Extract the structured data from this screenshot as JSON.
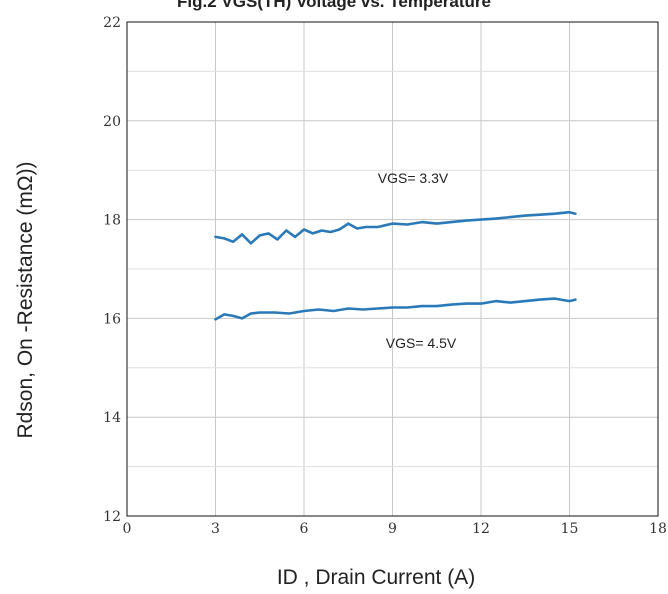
{
  "chart_data": {
    "type": "line",
    "title": "Fig.2 VGS(TH) Voltage vs. Temperature",
    "xlabel": "ID , Drain Current (A)",
    "ylabel": "Rdson, On -Resistance (mΩ))",
    "xlim": [
      0,
      18
    ],
    "ylim": [
      12,
      22
    ],
    "xticks": [
      0,
      3,
      6,
      9,
      12,
      15,
      18
    ],
    "yticks": [
      12,
      14,
      16,
      18,
      20,
      22
    ],
    "x_tick_labels": [
      "0",
      "3",
      "6",
      "9",
      "12",
      "15",
      "18"
    ],
    "y_tick_labels": [
      "12",
      "14",
      "16",
      "18",
      "20",
      "22"
    ],
    "grid": true,
    "annotations": [
      "VGS= 3.3V",
      "VGS= 4.5V"
    ],
    "line_color": "#2a7ab9",
    "series": [
      {
        "name": "VGS= 3.3V",
        "x": [
          3.0,
          3.3,
          3.6,
          3.9,
          4.2,
          4.5,
          4.8,
          5.1,
          5.4,
          5.7,
          6.0,
          6.3,
          6.6,
          6.9,
          7.2,
          7.5,
          7.8,
          8.1,
          8.5,
          9.0,
          9.5,
          10.0,
          10.5,
          11.0,
          11.5,
          12.0,
          12.5,
          13.0,
          13.5,
          14.0,
          14.5,
          15.0,
          15.2
        ],
        "y": [
          17.65,
          17.62,
          17.55,
          17.7,
          17.52,
          17.68,
          17.72,
          17.6,
          17.78,
          17.65,
          17.8,
          17.72,
          17.78,
          17.75,
          17.8,
          17.92,
          17.82,
          17.85,
          17.85,
          17.92,
          17.9,
          17.95,
          17.92,
          17.95,
          17.98,
          18.0,
          18.02,
          18.05,
          18.08,
          18.1,
          18.12,
          18.15,
          18.12
        ]
      },
      {
        "name": "VGS= 4.5V",
        "x": [
          3.0,
          3.3,
          3.6,
          3.9,
          4.2,
          4.5,
          5.0,
          5.5,
          6.0,
          6.5,
          7.0,
          7.5,
          8.0,
          8.5,
          9.0,
          9.5,
          10.0,
          10.5,
          11.0,
          11.5,
          12.0,
          12.5,
          13.0,
          13.5,
          14.0,
          14.5,
          15.0,
          15.2
        ],
        "y": [
          15.98,
          16.08,
          16.05,
          16.0,
          16.1,
          16.12,
          16.12,
          16.1,
          16.15,
          16.18,
          16.15,
          16.2,
          16.18,
          16.2,
          16.22,
          16.22,
          16.25,
          16.25,
          16.28,
          16.3,
          16.3,
          16.35,
          16.32,
          16.35,
          16.38,
          16.4,
          16.35,
          16.38
        ]
      }
    ]
  }
}
